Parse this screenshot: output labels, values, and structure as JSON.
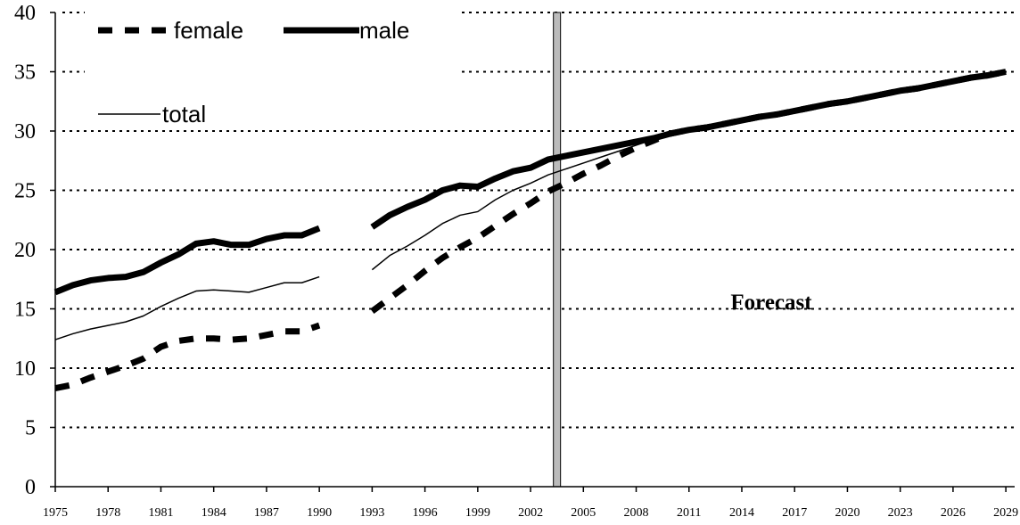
{
  "chart_data": {
    "type": "line",
    "x": [
      1975,
      1976,
      1977,
      1978,
      1979,
      1980,
      1981,
      1982,
      1983,
      1984,
      1985,
      1986,
      1987,
      1988,
      1989,
      1990,
      1991,
      1992,
      1993,
      1994,
      1995,
      1996,
      1997,
      1998,
      1999,
      2000,
      2001,
      2002,
      2003,
      2004,
      2005,
      2006,
      2007,
      2008,
      2009,
      2010,
      2011,
      2012,
      2013,
      2014,
      2015,
      2016,
      2017,
      2018,
      2019,
      2020,
      2021,
      2022,
      2023,
      2024,
      2025,
      2026,
      2027,
      2028,
      2029
    ],
    "series": [
      {
        "name": "female",
        "color": "#000000",
        "dashed": true,
        "width": 7,
        "values": [
          8.3,
          8.6,
          9.2,
          9.7,
          10.2,
          10.8,
          11.8,
          12.3,
          12.5,
          12.5,
          12.4,
          12.5,
          12.8,
          13.1,
          13.1,
          13.6,
          null,
          null,
          14.8,
          15.9,
          17.0,
          18.2,
          19.3,
          20.2,
          21.0,
          22.0,
          23.0,
          23.9,
          24.9,
          25.6,
          26.4,
          27.1,
          27.9,
          28.6,
          29.2,
          29.8,
          30.1,
          30.3,
          30.6,
          30.9,
          31.2,
          31.4,
          31.7,
          32.0,
          32.3,
          32.5,
          32.8,
          33.1,
          33.4,
          33.6,
          33.9,
          34.2,
          34.5,
          34.7,
          35.0
        ]
      },
      {
        "name": "male",
        "color": "#000000",
        "dashed": false,
        "width": 7,
        "values": [
          16.4,
          17.0,
          17.4,
          17.6,
          17.7,
          18.1,
          18.9,
          19.6,
          20.5,
          20.7,
          20.4,
          20.4,
          20.9,
          21.2,
          21.2,
          21.8,
          null,
          null,
          21.9,
          22.9,
          23.6,
          24.2,
          25.0,
          25.4,
          25.3,
          26.0,
          26.6,
          26.9,
          27.6,
          27.9,
          28.2,
          28.5,
          28.8,
          29.1,
          29.4,
          29.8,
          30.1,
          30.3,
          30.6,
          30.9,
          31.2,
          31.4,
          31.7,
          32.0,
          32.3,
          32.5,
          32.8,
          33.1,
          33.4,
          33.6,
          33.9,
          34.2,
          34.5,
          34.7,
          35.0
        ]
      },
      {
        "name": "total",
        "color": "#000000",
        "dashed": false,
        "width": 1.5,
        "values": [
          12.4,
          12.9,
          13.3,
          13.6,
          13.9,
          14.4,
          15.2,
          15.9,
          16.5,
          16.6,
          16.5,
          16.4,
          16.8,
          17.2,
          17.2,
          17.7,
          null,
          null,
          18.3,
          19.5,
          20.3,
          21.2,
          22.2,
          22.9,
          23.2,
          24.2,
          25.0,
          25.6,
          26.3,
          26.8,
          27.3,
          27.8,
          28.3,
          28.8,
          29.3,
          29.8,
          30.1,
          30.3,
          30.6,
          30.9,
          31.2,
          31.4,
          31.7,
          32.0,
          32.3,
          32.5,
          32.8,
          33.1,
          33.4,
          33.6,
          33.9,
          34.2,
          34.5,
          34.7,
          35.0
        ]
      }
    ],
    "xlim": [
      1975,
      2029.5
    ],
    "xticks": [
      1975,
      1978,
      1981,
      1984,
      1987,
      1990,
      1993,
      1996,
      1999,
      2002,
      2005,
      2008,
      2011,
      2014,
      2017,
      2020,
      2023,
      2026,
      2029
    ],
    "ylim": [
      0,
      40
    ],
    "yticks": [
      0,
      5,
      10,
      15,
      20,
      25,
      30,
      35,
      40
    ],
    "grid": true,
    "legend": "upper left",
    "vline": 2003.5,
    "annotation": "Forecast"
  }
}
